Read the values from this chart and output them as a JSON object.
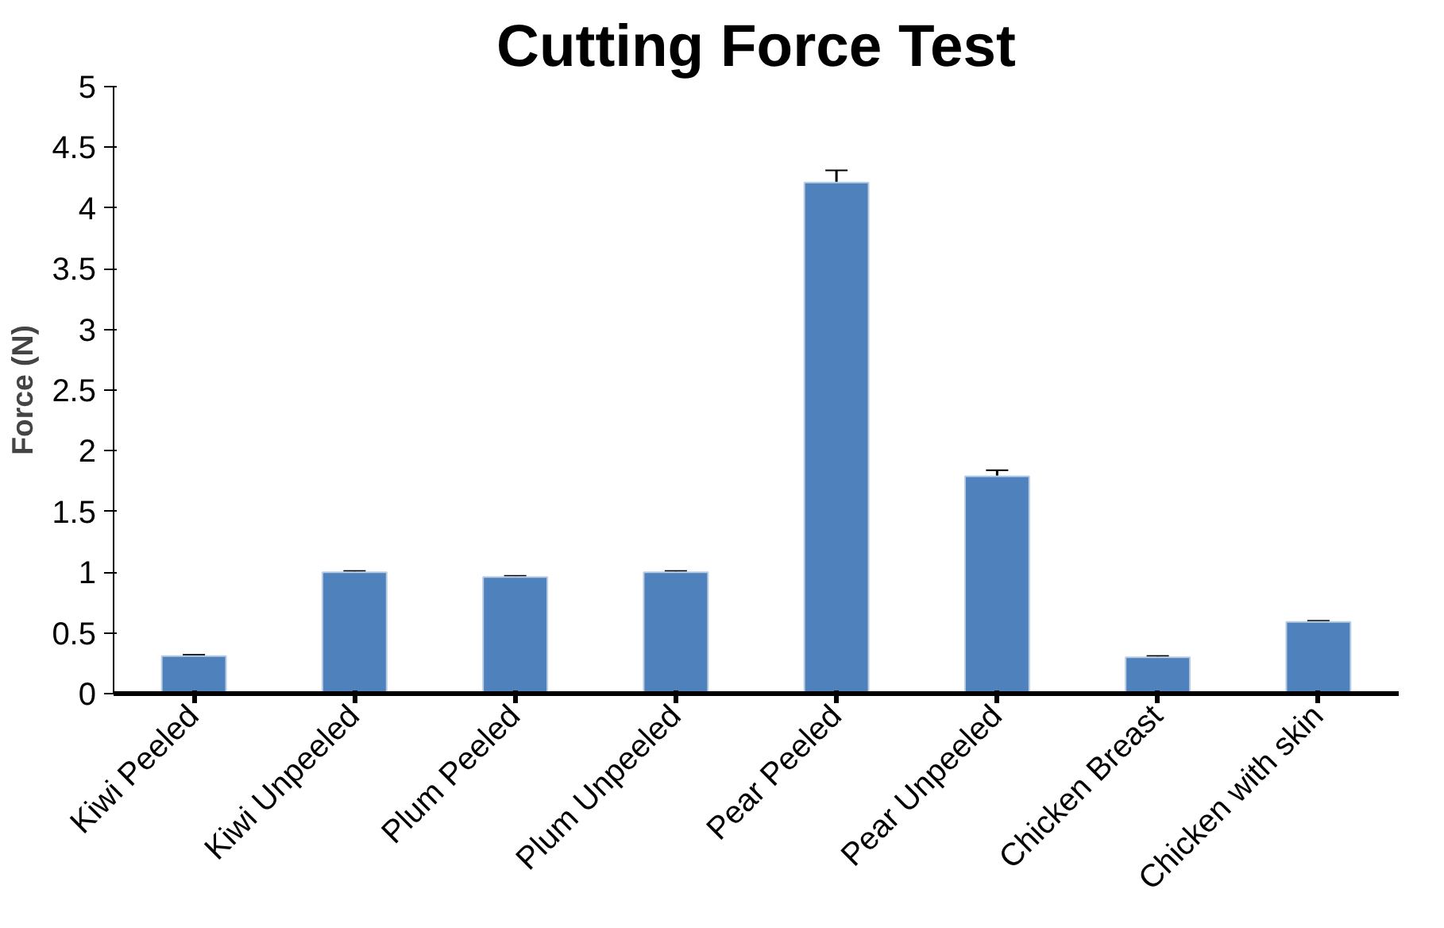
{
  "chart_data": {
    "type": "bar",
    "title": "Cutting Force Test",
    "ylabel": "Force (N)",
    "categories": [
      "Kiwi Peeled",
      "Kiwi Unpeeled",
      "Plum Peeled",
      "Plum Unpeeled",
      "Pear Peeled",
      "Pear Unpeeled",
      "Chicken Breast",
      "Chicken with skin"
    ],
    "values": [
      0.31,
      1.0,
      0.96,
      1.0,
      4.21,
      1.79,
      0.3,
      0.59
    ],
    "errors": [
      0.01,
      0.01,
      0.01,
      0.01,
      0.1,
      0.05,
      0.01,
      0.01
    ],
    "color": "#4f81bd",
    "ylim": [
      0,
      5
    ],
    "yticks": [
      0,
      0.5,
      1,
      1.5,
      2,
      2.5,
      3,
      3.5,
      4,
      4.5,
      5
    ],
    "grid": false
  }
}
